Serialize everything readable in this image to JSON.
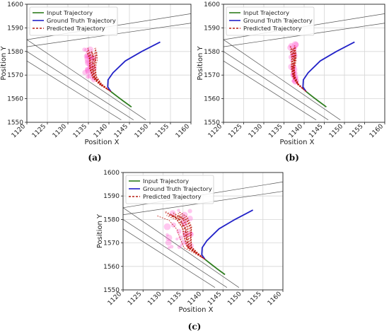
{
  "chart_data": [
    {
      "panel": "(a)",
      "type": "line",
      "xlabel": "Position X",
      "ylabel": "Position Y",
      "xlim": [
        1120,
        1160
      ],
      "ylim": [
        1550,
        1600
      ],
      "xticks": [
        "1120",
        "1125",
        "1130",
        "1135",
        "1140",
        "1145",
        "1150",
        "1155",
        "1160"
      ],
      "yticks": [
        "1550",
        "1560",
        "1570",
        "1580",
        "1590",
        "1600"
      ],
      "legend": [
        "Input Trajectory",
        "Ground Truth Trajectory",
        "Predicted Trajectory"
      ],
      "legend_loc": "upper-left",
      "grid": true,
      "road_lines": [
        [
          [
            1120,
            1585
          ],
          [
            1160,
            1596
          ]
        ],
        [
          [
            1120,
            1582
          ],
          [
            1160,
            1592
          ]
        ],
        [
          [
            1120,
            1580
          ],
          [
            1146,
            1551
          ]
        ],
        [
          [
            1120,
            1576
          ],
          [
            1143,
            1551
          ]
        ],
        [
          [
            1120,
            1585
          ],
          [
            1149,
            1551
          ]
        ]
      ],
      "series": [
        {
          "name": "Input Trajectory",
          "color": "#2e7d1e",
          "style": "solid",
          "x": [
            1145.5,
            1143.5,
            1142,
            1140.5
          ],
          "y": [
            1556.5,
            1559,
            1561,
            1563
          ]
        },
        {
          "name": "Ground Truth Trajectory",
          "color": "#2222c8",
          "style": "solid",
          "x": [
            1140.5,
            1139.7,
            1139.8,
            1141,
            1144,
            1148,
            1152.5
          ],
          "y": [
            1563,
            1565,
            1568,
            1571,
            1576,
            1580,
            1584
          ]
        },
        {
          "name": "Predicted Trajectory",
          "color": "#b81c10",
          "style": "dashed",
          "x": [
            1140.5,
            1138,
            1136.5,
            1136,
            1136.2,
            1135.8
          ],
          "y": [
            1563,
            1566,
            1569,
            1573,
            1577,
            1580
          ]
        }
      ],
      "prediction_fan_x": [
        1134,
        1136.5
      ],
      "prediction_fan_y": [
        1567,
        1582
      ]
    },
    {
      "panel": "(b)",
      "type": "line",
      "xlabel": "Position X",
      "ylabel": "Position Y",
      "xlim": [
        1120,
        1160
      ],
      "ylim": [
        1550,
        1600
      ],
      "xticks": [
        "1120",
        "1125",
        "1130",
        "1135",
        "1140",
        "1145",
        "1150",
        "1155",
        "1160"
      ],
      "yticks": [
        "1550",
        "1560",
        "1570",
        "1580",
        "1590",
        "1600"
      ],
      "legend": [
        "Input Trajectory",
        "Ground Truth Trajectory",
        "Predicted Trajectory"
      ],
      "legend_loc": "upper-left",
      "grid": true,
      "road_lines": [
        [
          [
            1120,
            1585
          ],
          [
            1160,
            1596
          ]
        ],
        [
          [
            1120,
            1582
          ],
          [
            1160,
            1592
          ]
        ],
        [
          [
            1120,
            1580
          ],
          [
            1146,
            1551
          ]
        ],
        [
          [
            1120,
            1576
          ],
          [
            1143,
            1551
          ]
        ],
        [
          [
            1120,
            1585
          ],
          [
            1149,
            1551
          ]
        ]
      ],
      "series": [
        {
          "name": "Input Trajectory",
          "color": "#2e7d1e",
          "style": "solid",
          "x": [
            1145.5,
            1143.5,
            1142,
            1140.5
          ],
          "y": [
            1556.5,
            1559,
            1561,
            1563
          ]
        },
        {
          "name": "Ground Truth Trajectory",
          "color": "#2222c8",
          "style": "solid",
          "x": [
            1140.5,
            1139.7,
            1139.8,
            1141,
            1144,
            1148,
            1152.5
          ],
          "y": [
            1563,
            1565,
            1568,
            1571,
            1576,
            1580,
            1584
          ]
        },
        {
          "name": "Predicted Trajectory",
          "color": "#b81c10",
          "style": "dashed",
          "x": [
            1140.5,
            1138.5,
            1137.5,
            1137.2,
            1137.5,
            1137.2
          ],
          "y": [
            1563,
            1566,
            1569,
            1573,
            1577,
            1581
          ]
        }
      ],
      "prediction_fan_x": [
        1136.5,
        1138
      ],
      "prediction_fan_y": [
        1567,
        1583
      ]
    },
    {
      "panel": "(c)",
      "type": "line",
      "xlabel": "Position X",
      "ylabel": "Position Y",
      "xlim": [
        1120,
        1160
      ],
      "ylim": [
        1550,
        1600
      ],
      "xticks": [
        "1120",
        "1125",
        "1130",
        "1135",
        "1140",
        "1145",
        "1150",
        "1155",
        "1160"
      ],
      "yticks": [
        "1550",
        "1560",
        "1570",
        "1580",
        "1590",
        "1600"
      ],
      "legend": [
        "Input Trajectory",
        "Ground Truth Trajectory",
        "Predicted Trajectory"
      ],
      "legend_loc": "upper-left",
      "grid": true,
      "road_lines": [
        [
          [
            1120,
            1585
          ],
          [
            1160,
            1596
          ]
        ],
        [
          [
            1120,
            1582
          ],
          [
            1160,
            1592
          ]
        ],
        [
          [
            1120,
            1580
          ],
          [
            1146,
            1551
          ]
        ],
        [
          [
            1120,
            1576
          ],
          [
            1143,
            1551
          ]
        ],
        [
          [
            1120,
            1585
          ],
          [
            1149,
            1551
          ]
        ]
      ],
      "series": [
        {
          "name": "Input Trajectory",
          "color": "#2e7d1e",
          "style": "solid",
          "x": [
            1145.5,
            1143.5,
            1142,
            1140.5
          ],
          "y": [
            1556.5,
            1559,
            1561,
            1563
          ]
        },
        {
          "name": "Ground Truth Trajectory",
          "color": "#2222c8",
          "style": "solid",
          "x": [
            1140.5,
            1139.7,
            1139.8,
            1141,
            1144,
            1148,
            1152.5
          ],
          "y": [
            1563,
            1565,
            1568,
            1571,
            1576,
            1580,
            1584
          ]
        },
        {
          "name": "Predicted Trajectory",
          "color": "#b81c10",
          "style": "dashed",
          "x": [
            1140.5,
            1138,
            1136.3,
            1135.8,
            1135.5,
            1134,
            1131.5
          ],
          "y": [
            1563,
            1566,
            1568,
            1572,
            1576,
            1580,
            1582
          ]
        }
      ],
      "prediction_fan_x": [
        1131,
        1137
      ],
      "prediction_fan_y": [
        1566,
        1584
      ]
    }
  ],
  "captions": [
    "(a)",
    "(b)",
    "(c)"
  ]
}
